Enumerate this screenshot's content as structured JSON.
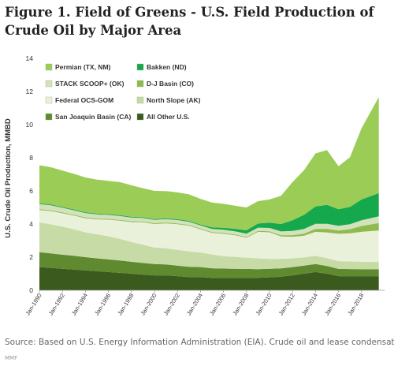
{
  "title": "Figure 1. Field of Greens - U.S. Field Production of Crude Oil by Major Area",
  "source": "Source: Based on U.S. Energy Information Administration (EIA). Crude oil and lease condensates.",
  "watermark": "MMF",
  "chart_data": {
    "type": "area",
    "stacked": true,
    "title": "Figure 1. Field of Greens - U.S. Field Production of Crude Oil by Major Area",
    "xlabel": "",
    "ylabel": "U.S. Crude Oil Production, MMBD",
    "ylim": [
      0,
      14
    ],
    "yticks": [
      0,
      2,
      4,
      6,
      8,
      10,
      12,
      14
    ],
    "xlim": [
      1990,
      2020
    ],
    "xticks": [
      "Jan-1990",
      "Jan-1992",
      "Jan-1994",
      "Jan-1996",
      "Jan-1998",
      "Jan-2000",
      "Jan-2002",
      "Jan-2004",
      "Jan-2006",
      "Jan-2008",
      "Jan-2010",
      "Jan-2012",
      "Jan-2014",
      "Jan-2016",
      "Jan-2018"
    ],
    "grid": false,
    "legend_position": "top-left",
    "x": [
      1990,
      1991,
      1992,
      1993,
      1994,
      1995,
      1996,
      1997,
      1998,
      1999,
      2000,
      2001,
      2002,
      2003,
      2004,
      2005,
      2006,
      2007,
      2008,
      2009,
      2010,
      2011,
      2012,
      2013,
      2014,
      2015,
      2016,
      2017,
      2018,
      2019.5
    ],
    "series": [
      {
        "name": "All Other U.S.",
        "color": "#3b5a1e",
        "values": [
          1.4,
          1.35,
          1.3,
          1.25,
          1.2,
          1.15,
          1.1,
          1.05,
          1.0,
          0.95,
          0.9,
          0.9,
          0.85,
          0.8,
          0.8,
          0.75,
          0.75,
          0.75,
          0.75,
          0.75,
          0.78,
          0.82,
          0.9,
          1.0,
          1.1,
          1.0,
          0.85,
          0.85,
          0.85,
          0.85
        ]
      },
      {
        "name": "San Joaquin Basin (CA)",
        "color": "#5f8a30",
        "values": [
          0.9,
          0.88,
          0.85,
          0.83,
          0.8,
          0.78,
          0.76,
          0.75,
          0.72,
          0.7,
          0.68,
          0.66,
          0.64,
          0.62,
          0.6,
          0.58,
          0.56,
          0.55,
          0.54,
          0.52,
          0.52,
          0.5,
          0.5,
          0.49,
          0.48,
          0.46,
          0.44,
          0.43,
          0.42,
          0.41
        ]
      },
      {
        "name": "North Slope (AK)",
        "color": "#c7dba6",
        "values": [
          1.8,
          1.75,
          1.7,
          1.6,
          1.5,
          1.45,
          1.4,
          1.3,
          1.2,
          1.1,
          1.0,
          0.98,
          0.95,
          0.93,
          0.88,
          0.83,
          0.75,
          0.72,
          0.68,
          0.66,
          0.6,
          0.58,
          0.53,
          0.5,
          0.5,
          0.48,
          0.47,
          0.46,
          0.46,
          0.45
        ]
      },
      {
        "name": "Federal OCS-GOM",
        "color": "#eaf1db",
        "values": [
          0.75,
          0.8,
          0.8,
          0.83,
          0.85,
          0.9,
          1.0,
          1.1,
          1.2,
          1.35,
          1.42,
          1.5,
          1.55,
          1.55,
          1.4,
          1.3,
          1.35,
          1.3,
          1.2,
          1.6,
          1.6,
          1.35,
          1.3,
          1.3,
          1.45,
          1.55,
          1.65,
          1.7,
          1.8,
          1.9
        ]
      },
      {
        "name": "D-J Basin (CO)",
        "color": "#8fbb4e",
        "values": [
          0.05,
          0.05,
          0.05,
          0.05,
          0.05,
          0.05,
          0.05,
          0.05,
          0.05,
          0.05,
          0.05,
          0.05,
          0.05,
          0.05,
          0.05,
          0.05,
          0.05,
          0.05,
          0.05,
          0.05,
          0.06,
          0.08,
          0.1,
          0.13,
          0.18,
          0.22,
          0.2,
          0.25,
          0.35,
          0.45
        ]
      },
      {
        "name": "STACK SCOOP+ (OK)",
        "color": "#d3e2bb",
        "values": [
          0.3,
          0.3,
          0.28,
          0.27,
          0.26,
          0.25,
          0.24,
          0.23,
          0.22,
          0.21,
          0.2,
          0.2,
          0.2,
          0.19,
          0.19,
          0.19,
          0.19,
          0.19,
          0.2,
          0.2,
          0.2,
          0.22,
          0.25,
          0.28,
          0.3,
          0.3,
          0.28,
          0.3,
          0.35,
          0.4
        ]
      },
      {
        "name": "Bakken (ND)",
        "color": "#16a84c",
        "values": [
          0.05,
          0.05,
          0.05,
          0.05,
          0.05,
          0.05,
          0.05,
          0.05,
          0.05,
          0.05,
          0.05,
          0.05,
          0.05,
          0.05,
          0.05,
          0.1,
          0.12,
          0.15,
          0.2,
          0.25,
          0.32,
          0.45,
          0.65,
          0.85,
          1.05,
          1.15,
          1.0,
          1.05,
          1.25,
          1.4
        ]
      },
      {
        "name": "Permian (TX, NM)",
        "color": "#9bcc55",
        "values": [
          2.3,
          2.25,
          2.2,
          2.15,
          2.1,
          2.05,
          2.0,
          2.0,
          1.9,
          1.75,
          1.7,
          1.65,
          1.62,
          1.6,
          1.55,
          1.5,
          1.45,
          1.4,
          1.38,
          1.35,
          1.4,
          1.7,
          2.3,
          2.7,
          3.2,
          3.3,
          2.6,
          3.0,
          4.3,
          5.8
        ]
      }
    ]
  }
}
